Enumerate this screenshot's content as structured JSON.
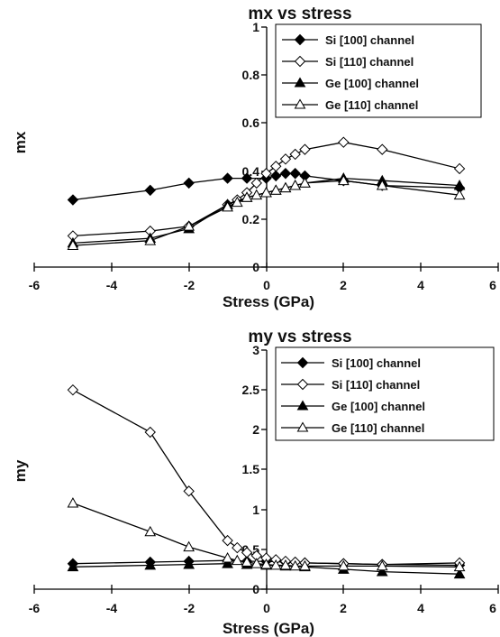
{
  "chart_data": [
    {
      "type": "line",
      "title": "mx vs stress",
      "xlabel": "Stress (GPa)",
      "ylabel": "mx",
      "xlim": [
        -6,
        6
      ],
      "ylim": [
        0,
        1
      ],
      "xticks": [
        "-6",
        "-4",
        "-2",
        "0",
        "2",
        "4",
        "6"
      ],
      "yticks": [
        "0",
        "0.2",
        "0.4",
        "0.6",
        "0.8",
        "1"
      ],
      "legend_position": "top-right",
      "series": [
        {
          "name": "Si [100] channel",
          "marker": "filled-diamond",
          "x": [
            -5,
            -3,
            -2,
            -1,
            -0.5,
            0,
            0.25,
            0.5,
            0.75,
            1,
            2,
            3,
            5
          ],
          "y": [
            0.28,
            0.32,
            0.35,
            0.37,
            0.37,
            0.37,
            0.38,
            0.39,
            0.39,
            0.38,
            0.36,
            0.34,
            0.33
          ]
        },
        {
          "name": "Si [110] channel",
          "marker": "open-diamond",
          "x": [
            -5,
            -3,
            -2,
            -1,
            -0.75,
            -0.5,
            -0.25,
            0,
            0.25,
            0.5,
            0.75,
            1,
            2,
            3,
            5
          ],
          "y": [
            0.13,
            0.15,
            0.17,
            0.26,
            0.28,
            0.31,
            0.35,
            0.39,
            0.42,
            0.45,
            0.47,
            0.49,
            0.52,
            0.49,
            0.41
          ]
        },
        {
          "name": "Ge [100] channel",
          "marker": "filled-triangle",
          "x": [
            -5,
            -3,
            -2,
            -1,
            -0.5,
            0,
            0.25,
            0.5,
            0.75,
            1,
            2,
            3,
            5
          ],
          "y": [
            0.1,
            0.12,
            0.16,
            0.26,
            0.29,
            0.31,
            0.32,
            0.33,
            0.34,
            0.35,
            0.37,
            0.36,
            0.34
          ]
        },
        {
          "name": "Ge [110] channel",
          "marker": "open-triangle",
          "x": [
            -5,
            -3,
            -2,
            -1,
            -0.75,
            -0.5,
            -0.25,
            0,
            0.25,
            0.5,
            0.75,
            1,
            2,
            3,
            5
          ],
          "y": [
            0.09,
            0.11,
            0.17,
            0.25,
            0.27,
            0.29,
            0.3,
            0.31,
            0.32,
            0.33,
            0.34,
            0.35,
            0.36,
            0.34,
            0.3
          ]
        }
      ]
    },
    {
      "type": "line",
      "title": "my vs stress",
      "xlabel": "Stress (GPa)",
      "ylabel": "my",
      "xlim": [
        -6,
        6
      ],
      "ylim": [
        0,
        3
      ],
      "xticks": [
        "-6",
        "-4",
        "-2",
        "0",
        "2",
        "4",
        "6"
      ],
      "yticks": [
        "0",
        "0.5",
        "1",
        "1.5",
        "2",
        "2.5",
        "3"
      ],
      "legend_position": "top-right",
      "series": [
        {
          "name": "Si [100] channel",
          "marker": "filled-diamond",
          "x": [
            -5,
            -3,
            -2,
            -1,
            -0.5,
            0,
            0.5,
            1,
            2,
            3,
            5
          ],
          "y": [
            0.32,
            0.34,
            0.35,
            0.36,
            0.35,
            0.35,
            0.34,
            0.33,
            0.32,
            0.31,
            0.3
          ]
        },
        {
          "name": "Si [110] channel",
          "marker": "open-diamond",
          "x": [
            -5,
            -3,
            -2,
            -1,
            -0.75,
            -0.5,
            -0.25,
            0,
            0.25,
            0.5,
            0.75,
            1,
            2,
            3,
            5
          ],
          "y": [
            2.5,
            1.97,
            1.23,
            0.61,
            0.52,
            0.46,
            0.42,
            0.39,
            0.37,
            0.35,
            0.34,
            0.33,
            0.32,
            0.31,
            0.33
          ]
        },
        {
          "name": "Ge [100] channel",
          "marker": "filled-triangle",
          "x": [
            -5,
            -3,
            -2,
            -1,
            -0.5,
            0,
            0.5,
            1,
            2,
            3,
            5
          ],
          "y": [
            0.28,
            0.3,
            0.31,
            0.32,
            0.31,
            0.3,
            0.29,
            0.28,
            0.25,
            0.22,
            0.19
          ]
        },
        {
          "name": "Ge [110] channel",
          "marker": "open-triangle",
          "x": [
            -5,
            -3,
            -2,
            -1,
            -0.75,
            -0.5,
            -0.25,
            0,
            0.25,
            0.5,
            0.75,
            1,
            2,
            3,
            5
          ],
          "y": [
            1.08,
            0.72,
            0.53,
            0.39,
            0.36,
            0.34,
            0.32,
            0.31,
            0.3,
            0.3,
            0.29,
            0.29,
            0.29,
            0.29,
            0.28
          ]
        }
      ]
    }
  ]
}
